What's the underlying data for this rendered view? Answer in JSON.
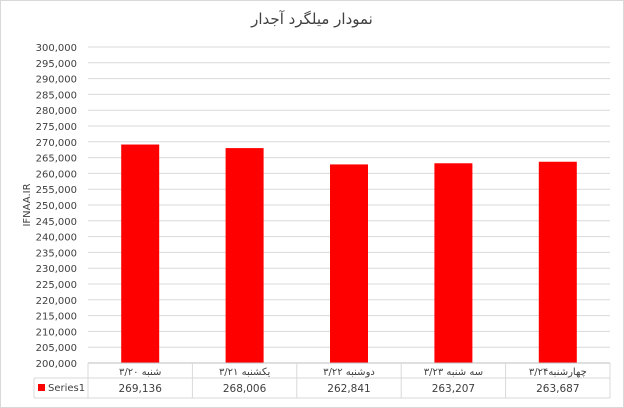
{
  "chart_data": {
    "type": "bar",
    "title": "نمودار میلگرد آجدار",
    "ylabel": "IFNAA.IR",
    "xlabel": "",
    "categories": [
      "شنبه ۳/۲۰",
      "یکشنبه ۳/۲۱",
      "دوشنبه ۳/۲۲",
      "سه شنبه ۳/۲۳",
      "چهارشنبه۳/۲۴"
    ],
    "series": [
      {
        "name": "Series1",
        "values": [
          269136,
          268006,
          262841,
          263207,
          263687
        ],
        "color": "#ff0000"
      }
    ],
    "ylim": [
      200000,
      300000
    ],
    "ytick_step": 5000,
    "grid": true,
    "legend": "data-table",
    "data_table": true
  }
}
